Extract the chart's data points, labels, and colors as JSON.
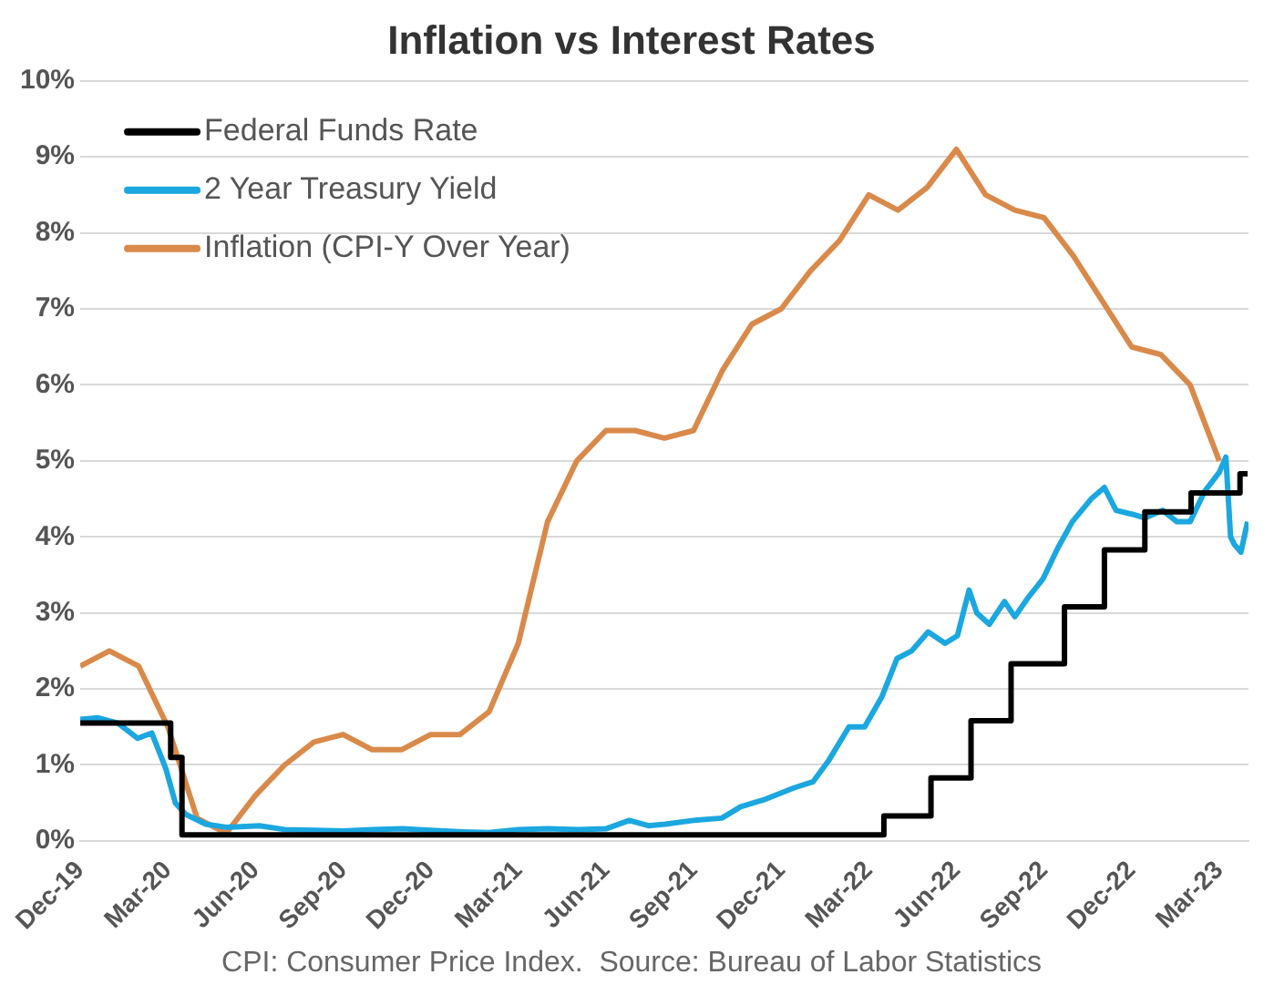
{
  "chart_data": {
    "type": "line",
    "title": "Inflation vs Interest Rates",
    "annotations": [
      "CPI: Consumer Price Index.  Source: Bureau of Labor Statistics"
    ],
    "xlim": [
      "2019-12-01",
      "2023-04-01"
    ],
    "xticks": [
      {
        "value": "2019-12",
        "label": "Dec-19"
      },
      {
        "value": "2020-03",
        "label": "Mar-20"
      },
      {
        "value": "2020-06",
        "label": "Jun-20"
      },
      {
        "value": "2020-09",
        "label": "Sep-20"
      },
      {
        "value": "2020-12",
        "label": "Dec-20"
      },
      {
        "value": "2021-03",
        "label": "Mar-21"
      },
      {
        "value": "2021-06",
        "label": "Jun-21"
      },
      {
        "value": "2021-09",
        "label": "Sep-21"
      },
      {
        "value": "2021-12",
        "label": "Dec-21"
      },
      {
        "value": "2022-03",
        "label": "Mar-22"
      },
      {
        "value": "2022-06",
        "label": "Jun-22"
      },
      {
        "value": "2022-09",
        "label": "Sep-22"
      },
      {
        "value": "2022-12",
        "label": "Dec-22"
      },
      {
        "value": "2023-03",
        "label": "Mar-23"
      }
    ],
    "ylim": [
      0,
      10
    ],
    "yticks": [
      {
        "value": 0,
        "label": "0%"
      },
      {
        "value": 1,
        "label": "1%"
      },
      {
        "value": 2,
        "label": "2%"
      },
      {
        "value": 3,
        "label": "3%"
      },
      {
        "value": 4,
        "label": "4%"
      },
      {
        "value": 5,
        "label": "5%"
      },
      {
        "value": 6,
        "label": "6%"
      },
      {
        "value": 7,
        "label": "7%"
      },
      {
        "value": 8,
        "label": "8%"
      },
      {
        "value": 9,
        "label": "9%"
      },
      {
        "value": 10,
        "label": "10%"
      }
    ],
    "grid": "y",
    "legend": "top left",
    "marker": "none",
    "series": [
      {
        "name": "Federal Funds Rate",
        "type": "step",
        "color": "#000000",
        "x": [
          "2019-12-01",
          "2020-03-04",
          "2020-03-16",
          "2022-03-17",
          "2022-05-05",
          "2022-06-16",
          "2022-07-28",
          "2022-09-22",
          "2022-11-03",
          "2022-12-15",
          "2023-02-02",
          "2023-03-23",
          "2023-03-31"
        ],
        "values": [
          1.55,
          1.1,
          0.08,
          0.33,
          0.83,
          1.58,
          2.33,
          3.08,
          3.83,
          4.33,
          4.58,
          4.83,
          4.83
        ]
      },
      {
        "name": "2 Year Treasury Yield",
        "color": "#1ba7e0",
        "x": [
          "2019-12-01",
          "2019-12-20",
          "2020-01-10",
          "2020-01-31",
          "2020-02-14",
          "2020-02-28",
          "2020-03-09",
          "2020-03-20",
          "2020-04-10",
          "2020-05-01",
          "2020-06-05",
          "2020-07-01",
          "2020-08-03",
          "2020-09-01",
          "2020-10-01",
          "2020-11-02",
          "2020-12-01",
          "2021-01-04",
          "2021-02-01",
          "2021-03-01",
          "2021-04-01",
          "2021-05-03",
          "2021-06-01",
          "2021-06-25",
          "2021-07-15",
          "2021-08-02",
          "2021-09-01",
          "2021-09-30",
          "2021-10-20",
          "2021-11-15",
          "2021-12-15",
          "2022-01-04",
          "2022-01-20",
          "2022-02-10",
          "2022-02-25",
          "2022-03-15",
          "2022-03-31",
          "2022-04-15",
          "2022-05-02",
          "2022-05-20",
          "2022-06-02",
          "2022-06-14",
          "2022-06-22",
          "2022-07-05",
          "2022-07-21",
          "2022-08-01",
          "2022-08-15",
          "2022-08-31",
          "2022-09-15",
          "2022-09-30",
          "2022-10-20",
          "2022-11-03",
          "2022-11-15",
          "2022-12-01",
          "2022-12-15",
          "2023-01-03",
          "2023-01-18",
          "2023-02-01",
          "2023-02-15",
          "2023-03-01",
          "2023-03-08",
          "2023-03-13",
          "2023-03-17",
          "2023-03-24",
          "2023-03-31"
        ],
        "values": [
          1.6,
          1.62,
          1.55,
          1.35,
          1.42,
          0.95,
          0.5,
          0.35,
          0.22,
          0.18,
          0.2,
          0.15,
          0.14,
          0.13,
          0.15,
          0.16,
          0.14,
          0.12,
          0.11,
          0.15,
          0.16,
          0.15,
          0.16,
          0.27,
          0.2,
          0.22,
          0.27,
          0.3,
          0.45,
          0.55,
          0.7,
          0.78,
          1.05,
          1.5,
          1.5,
          1.9,
          2.4,
          2.5,
          2.75,
          2.6,
          2.7,
          3.3,
          3.0,
          2.85,
          3.15,
          2.95,
          3.2,
          3.45,
          3.85,
          4.2,
          4.5,
          4.65,
          4.35,
          4.3,
          4.25,
          4.35,
          4.2,
          4.2,
          4.6,
          4.85,
          5.05,
          4.0,
          3.9,
          3.8,
          4.2
        ]
      },
      {
        "name": "Inflation (CPI-Y Over Year)",
        "color": "#d98a4a",
        "x": [
          "2019-12-01",
          "2020-01-01",
          "2020-02-01",
          "2020-03-01",
          "2020-04-01",
          "2020-05-01",
          "2020-06-01",
          "2020-07-01",
          "2020-08-01",
          "2020-09-01",
          "2020-10-01",
          "2020-11-01",
          "2020-12-01",
          "2021-01-01",
          "2021-02-01",
          "2021-03-01",
          "2021-04-01",
          "2021-05-01",
          "2021-06-01",
          "2021-07-01",
          "2021-08-01",
          "2021-09-01",
          "2021-10-01",
          "2021-11-01",
          "2021-12-01",
          "2022-01-01",
          "2022-02-01",
          "2022-03-01",
          "2022-04-01",
          "2022-05-01",
          "2022-06-01",
          "2022-07-01",
          "2022-08-01",
          "2022-09-01",
          "2022-10-01",
          "2022-11-01",
          "2022-12-01",
          "2023-01-01",
          "2023-02-01",
          "2023-03-01"
        ],
        "values": [
          2.3,
          2.5,
          2.3,
          1.5,
          0.3,
          0.1,
          0.6,
          1.0,
          1.3,
          1.4,
          1.2,
          1.2,
          1.4,
          1.4,
          1.7,
          2.6,
          4.2,
          5.0,
          5.4,
          5.4,
          5.3,
          5.4,
          6.2,
          6.8,
          7.0,
          7.5,
          7.9,
          8.5,
          8.3,
          8.6,
          9.1,
          8.5,
          8.3,
          8.2,
          7.7,
          7.1,
          6.5,
          6.4,
          6.0,
          5.0
        ]
      }
    ]
  }
}
